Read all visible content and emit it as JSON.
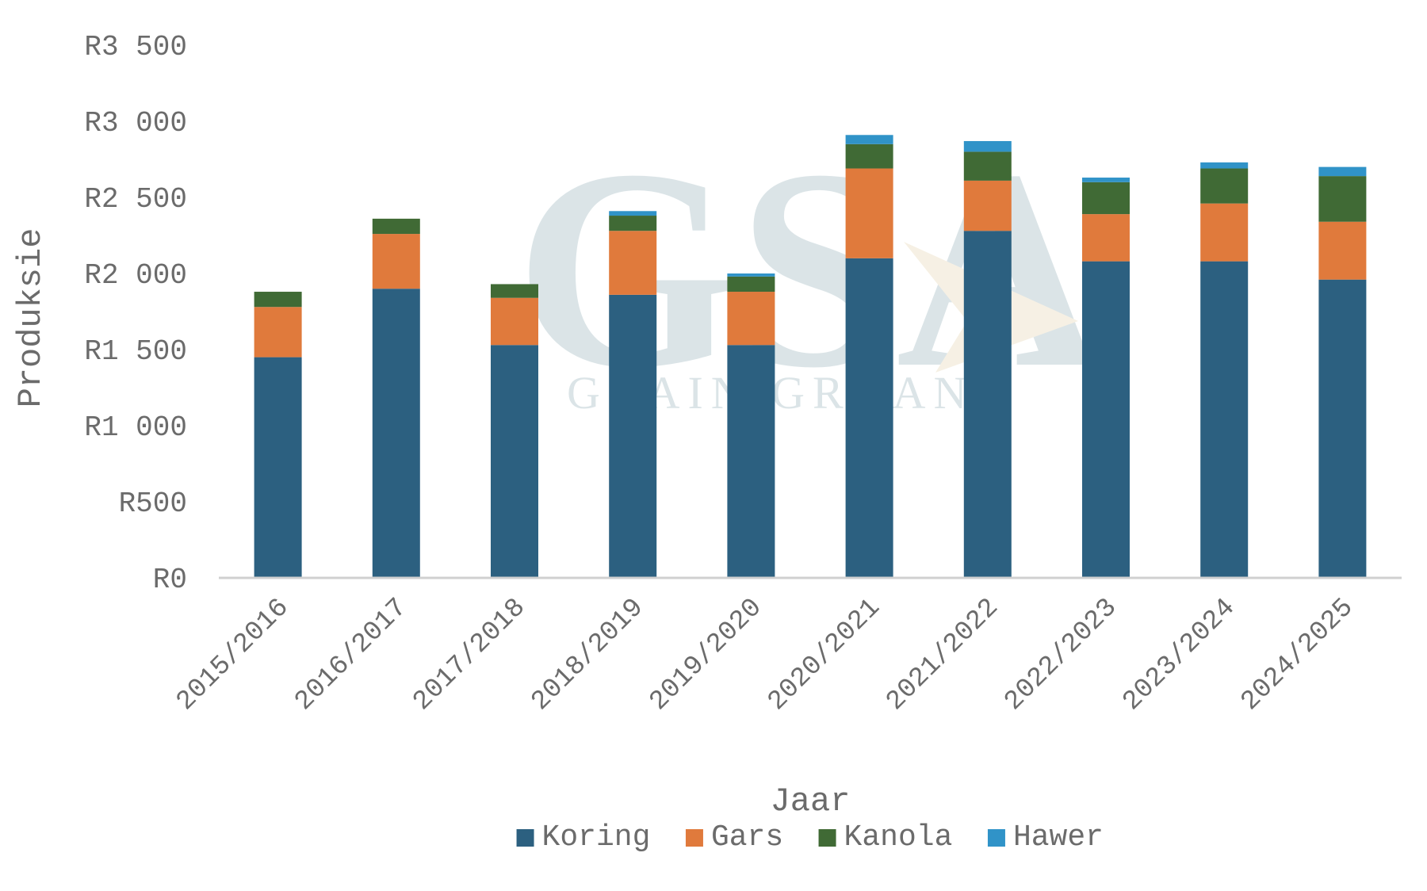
{
  "chart_data": {
    "type": "bar",
    "stacked": true,
    "xlabel": "Jaar",
    "ylabel": "Produksie",
    "ylim": [
      0,
      3500
    ],
    "yticks": [
      0,
      500,
      1000,
      1500,
      2000,
      2500,
      3000,
      3500
    ],
    "ytick_labels": [
      "R0",
      "R500",
      "R1 000",
      "R1 500",
      "R2 000",
      "R2 500",
      "R3 000",
      "R3 500"
    ],
    "grid": false,
    "legend_position": "bottom",
    "categories": [
      "2015/2016",
      "2016/2017",
      "2017/2018",
      "2018/2019",
      "2019/2020",
      "2020/2021",
      "2021/2022",
      "2022/2023",
      "2023/2024",
      "2024/2025"
    ],
    "series": [
      {
        "name": "Koring",
        "color": "#2c6080",
        "values": [
          1450,
          1900,
          1530,
          1860,
          1530,
          2100,
          2280,
          2080,
          2080,
          1960
        ]
      },
      {
        "name": "Gars",
        "color": "#e07a3c",
        "values": [
          330,
          360,
          310,
          420,
          350,
          590,
          330,
          310,
          380,
          380
        ]
      },
      {
        "name": "Kanola",
        "color": "#406a35",
        "values": [
          100,
          100,
          90,
          100,
          100,
          160,
          190,
          210,
          230,
          300
        ]
      },
      {
        "name": "Hawer",
        "color": "#3093c8",
        "values": [
          0,
          0,
          0,
          30,
          20,
          60,
          70,
          30,
          40,
          60
        ]
      }
    ]
  },
  "watermark": {
    "logo_text": "GSA",
    "sub_text": "GRAIN GRAAN"
  }
}
